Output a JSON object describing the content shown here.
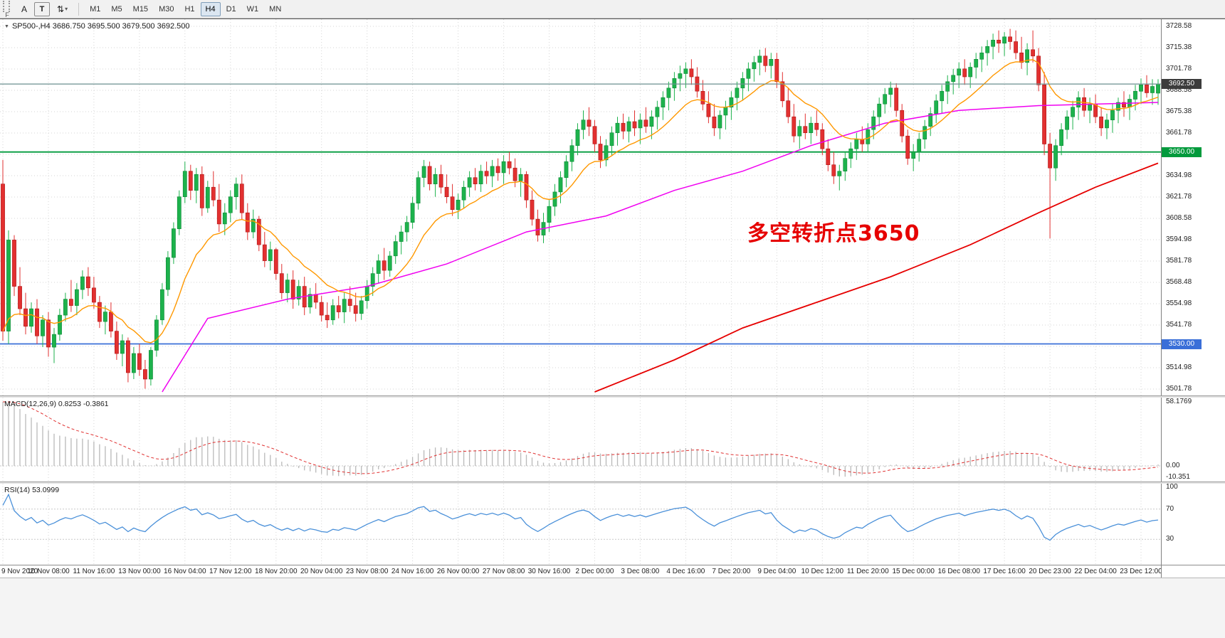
{
  "colors": {
    "up": "#1db24c",
    "up_border": "#0f8a38",
    "down": "#e23030",
    "down_border": "#b01717",
    "ma_fast": "#ff9800",
    "ma_mid": "#f000f0",
    "ma_slow": "#e60000",
    "grid": "#d6d6d6",
    "macd_histo": "#b9b9b9",
    "macd_signal": "#e03030",
    "rsi_line": "#4a90d9",
    "price_line": "#6b8f8f",
    "badge_current_bg": "#3c3c3c"
  },
  "toolbar": {
    "f_label": "F",
    "a_button": "A",
    "t_button": "T",
    "arrows_icon": "⇅",
    "dropdown_caret": "▾",
    "timeframes": [
      "M1",
      "M5",
      "M15",
      "M30",
      "H1",
      "H4",
      "D1",
      "W1",
      "MN"
    ],
    "active_timeframe": "H4"
  },
  "chart": {
    "symbol_line": "SP500-,H4 3686.750 3695.500 3679.500 3692.500",
    "annotation": {
      "text": "多空转折点3650",
      "color": "#e60000"
    },
    "price_axis_labels": [
      "3728.58",
      "3715.38",
      "3701.78",
      "3688.58",
      "3675.38",
      "3661.78",
      "3648.58",
      "3634.98",
      "3621.78",
      "3608.58",
      "3594.98",
      "3581.78",
      "3568.48",
      "3554.98",
      "3541.78",
      "3528.18",
      "3514.98",
      "3501.78"
    ],
    "price_line": {
      "value": 3692.5,
      "label": "3692.50"
    },
    "hlines": [
      {
        "value": 3650,
        "label": "3650.00",
        "color": "#019a3c"
      },
      {
        "value": 3530,
        "label": "3530.00",
        "color": "#3a6fd8"
      }
    ]
  },
  "chart_data": {
    "type": "candlestick",
    "symbol": "SP500-",
    "timeframe": "H4",
    "ylim": [
      3501.78,
      3728.58
    ],
    "ma_fast_period": 14,
    "ma_mid_anchors": [
      [
        28,
        3500
      ],
      [
        36,
        3546
      ],
      [
        50,
        3558
      ],
      [
        64,
        3566
      ],
      [
        78,
        3580
      ],
      [
        92,
        3600
      ],
      [
        106,
        3610
      ],
      [
        118,
        3626
      ],
      [
        130,
        3638
      ],
      [
        142,
        3654
      ],
      [
        155,
        3668
      ],
      [
        168,
        3676
      ],
      [
        182,
        3679
      ],
      [
        203,
        3681
      ]
    ],
    "ma_slow_anchors": [
      [
        104,
        3500
      ],
      [
        118,
        3520
      ],
      [
        130,
        3540
      ],
      [
        143,
        3556
      ],
      [
        156,
        3572
      ],
      [
        170,
        3592
      ],
      [
        182,
        3612
      ],
      [
        192,
        3628
      ],
      [
        203,
        3643
      ]
    ],
    "render_hints": {
      "macd_seed": 62.8,
      "rsi_seed_gain": 2.4,
      "rsi_seed_loss": 0.8
    },
    "ohlc": [
      [
        3630,
        3645,
        3532,
        3538
      ],
      [
        3538,
        3601,
        3530,
        3595
      ],
      [
        3595,
        3598,
        3560,
        3566
      ],
      [
        3566,
        3578,
        3548,
        3552
      ],
      [
        3552,
        3562,
        3536,
        3541
      ],
      [
        3541,
        3556,
        3537,
        3552
      ],
      [
        3552,
        3558,
        3530,
        3535
      ],
      [
        3535,
        3548,
        3528,
        3545
      ],
      [
        3545,
        3550,
        3522,
        3528
      ],
      [
        3528,
        3540,
        3518,
        3536
      ],
      [
        3536,
        3552,
        3532,
        3548
      ],
      [
        3548,
        3562,
        3544,
        3558
      ],
      [
        3558,
        3570,
        3550,
        3554
      ],
      [
        3554,
        3568,
        3548,
        3564
      ],
      [
        3564,
        3576,
        3558,
        3572
      ],
      [
        3572,
        3578,
        3560,
        3565
      ],
      [
        3565,
        3572,
        3552,
        3556
      ],
      [
        3556,
        3560,
        3540,
        3544
      ],
      [
        3544,
        3554,
        3536,
        3550
      ],
      [
        3550,
        3556,
        3534,
        3538
      ],
      [
        3538,
        3544,
        3520,
        3524
      ],
      [
        3524,
        3536,
        3516,
        3532
      ],
      [
        3532,
        3534,
        3506,
        3512
      ],
      [
        3512,
        3528,
        3508,
        3524
      ],
      [
        3524,
        3530,
        3510,
        3514
      ],
      [
        3514,
        3520,
        3502,
        3508
      ],
      [
        3508,
        3528,
        3504,
        3526
      ],
      [
        3526,
        3548,
        3522,
        3545
      ],
      [
        3545,
        3568,
        3542,
        3564
      ],
      [
        3564,
        3588,
        3560,
        3584
      ],
      [
        3584,
        3606,
        3580,
        3602
      ],
      [
        3602,
        3626,
        3598,
        3622
      ],
      [
        3622,
        3644,
        3618,
        3638
      ],
      [
        3638,
        3642,
        3620,
        3626
      ],
      [
        3626,
        3640,
        3618,
        3636
      ],
      [
        3636,
        3641,
        3610,
        3615
      ],
      [
        3615,
        3632,
        3612,
        3628
      ],
      [
        3628,
        3638,
        3616,
        3620
      ],
      [
        3620,
        3630,
        3600,
        3605
      ],
      [
        3605,
        3618,
        3598,
        3612
      ],
      [
        3612,
        3626,
        3606,
        3622
      ],
      [
        3622,
        3634,
        3614,
        3630
      ],
      [
        3630,
        3636,
        3608,
        3612
      ],
      [
        3612,
        3618,
        3595,
        3600
      ],
      [
        3600,
        3614,
        3596,
        3608
      ],
      [
        3608,
        3610,
        3588,
        3592
      ],
      [
        3592,
        3600,
        3578,
        3582
      ],
      [
        3582,
        3594,
        3576,
        3589
      ],
      [
        3589,
        3590,
        3570,
        3574
      ],
      [
        3574,
        3580,
        3558,
        3562
      ],
      [
        3562,
        3574,
        3556,
        3570
      ],
      [
        3570,
        3576,
        3552,
        3558
      ],
      [
        3558,
        3570,
        3554,
        3566
      ],
      [
        3566,
        3572,
        3548,
        3553
      ],
      [
        3553,
        3565,
        3549,
        3561
      ],
      [
        3561,
        3568,
        3552,
        3556
      ],
      [
        3556,
        3560,
        3544,
        3548
      ],
      [
        3548,
        3556,
        3540,
        3545
      ],
      [
        3545,
        3558,
        3542,
        3554
      ],
      [
        3554,
        3560,
        3546,
        3550
      ],
      [
        3550,
        3562,
        3543,
        3558
      ],
      [
        3558,
        3566,
        3550,
        3554
      ],
      [
        3554,
        3562,
        3544,
        3549
      ],
      [
        3549,
        3560,
        3545,
        3557
      ],
      [
        3557,
        3570,
        3552,
        3566
      ],
      [
        3566,
        3578,
        3560,
        3574
      ],
      [
        3574,
        3586,
        3568,
        3582
      ],
      [
        3582,
        3590,
        3570,
        3576
      ],
      [
        3576,
        3588,
        3572,
        3585
      ],
      [
        3585,
        3598,
        3580,
        3594
      ],
      [
        3594,
        3604,
        3586,
        3600
      ],
      [
        3600,
        3610,
        3594,
        3606
      ],
      [
        3606,
        3622,
        3602,
        3618
      ],
      [
        3618,
        3638,
        3614,
        3634
      ],
      [
        3634,
        3645,
        3628,
        3641
      ],
      [
        3641,
        3644,
        3626,
        3630
      ],
      [
        3630,
        3640,
        3622,
        3636
      ],
      [
        3636,
        3642,
        3624,
        3628
      ],
      [
        3628,
        3636,
        3618,
        3622
      ],
      [
        3622,
        3630,
        3610,
        3614
      ],
      [
        3614,
        3624,
        3608,
        3620
      ],
      [
        3620,
        3632,
        3615,
        3628
      ],
      [
        3628,
        3638,
        3622,
        3634
      ],
      [
        3634,
        3640,
        3626,
        3630
      ],
      [
        3630,
        3642,
        3625,
        3638
      ],
      [
        3638,
        3644,
        3630,
        3635
      ],
      [
        3635,
        3645,
        3628,
        3641
      ],
      [
        3641,
        3646,
        3632,
        3637
      ],
      [
        3637,
        3648,
        3630,
        3644
      ],
      [
        3644,
        3650,
        3636,
        3640
      ],
      [
        3640,
        3646,
        3628,
        3632
      ],
      [
        3632,
        3640,
        3622,
        3636
      ],
      [
        3636,
        3638,
        3615,
        3620
      ],
      [
        3620,
        3626,
        3604,
        3608
      ],
      [
        3608,
        3614,
        3594,
        3598
      ],
      [
        3598,
        3612,
        3593,
        3606
      ],
      [
        3606,
        3620,
        3600,
        3616
      ],
      [
        3616,
        3630,
        3610,
        3625
      ],
      [
        3625,
        3638,
        3618,
        3634
      ],
      [
        3634,
        3648,
        3628,
        3644
      ],
      [
        3644,
        3658,
        3638,
        3654
      ],
      [
        3654,
        3668,
        3648,
        3664
      ],
      [
        3664,
        3676,
        3658,
        3670
      ],
      [
        3670,
        3678,
        3660,
        3666
      ],
      [
        3666,
        3670,
        3650,
        3655
      ],
      [
        3655,
        3660,
        3640,
        3645
      ],
      [
        3645,
        3658,
        3641,
        3654
      ],
      [
        3654,
        3666,
        3648,
        3662
      ],
      [
        3662,
        3672,
        3654,
        3668
      ],
      [
        3668,
        3674,
        3658,
        3663
      ],
      [
        3663,
        3672,
        3656,
        3669
      ],
      [
        3669,
        3676,
        3660,
        3665
      ],
      [
        3665,
        3674,
        3655,
        3670
      ],
      [
        3670,
        3678,
        3662,
        3666
      ],
      [
        3666,
        3676,
        3658,
        3672
      ],
      [
        3672,
        3682,
        3664,
        3678
      ],
      [
        3678,
        3688,
        3670,
        3684
      ],
      [
        3684,
        3694,
        3676,
        3690
      ],
      [
        3690,
        3700,
        3682,
        3696
      ],
      [
        3696,
        3704,
        3688,
        3699
      ],
      [
        3699,
        3706,
        3690,
        3702
      ],
      [
        3702,
        3708,
        3692,
        3697
      ],
      [
        3697,
        3703,
        3684,
        3688
      ],
      [
        3688,
        3695,
        3676,
        3680
      ],
      [
        3680,
        3688,
        3668,
        3672
      ],
      [
        3672,
        3680,
        3660,
        3665
      ],
      [
        3665,
        3676,
        3658,
        3673
      ],
      [
        3673,
        3682,
        3664,
        3678
      ],
      [
        3678,
        3688,
        3670,
        3684
      ],
      [
        3684,
        3694,
        3676,
        3690
      ],
      [
        3690,
        3700,
        3682,
        3696
      ],
      [
        3696,
        3706,
        3688,
        3702
      ],
      [
        3702,
        3710,
        3694,
        3706
      ],
      [
        3706,
        3714,
        3698,
        3710
      ],
      [
        3710,
        3715,
        3700,
        3704
      ],
      [
        3704,
        3712,
        3696,
        3708
      ],
      [
        3708,
        3712,
        3690,
        3694
      ],
      [
        3694,
        3700,
        3678,
        3682
      ],
      [
        3682,
        3690,
        3668,
        3672
      ],
      [
        3672,
        3680,
        3656,
        3660
      ],
      [
        3660,
        3670,
        3652,
        3666
      ],
      [
        3666,
        3674,
        3658,
        3662
      ],
      [
        3662,
        3672,
        3655,
        3668
      ],
      [
        3668,
        3676,
        3660,
        3664
      ],
      [
        3664,
        3668,
        3648,
        3652
      ],
      [
        3652,
        3658,
        3638,
        3642
      ],
      [
        3642,
        3650,
        3630,
        3635
      ],
      [
        3635,
        3642,
        3626,
        3638
      ],
      [
        3638,
        3650,
        3632,
        3646
      ],
      [
        3646,
        3656,
        3640,
        3652
      ],
      [
        3652,
        3662,
        3645,
        3658
      ],
      [
        3658,
        3666,
        3650,
        3655
      ],
      [
        3655,
        3668,
        3650,
        3664
      ],
      [
        3664,
        3676,
        3658,
        3672
      ],
      [
        3672,
        3684,
        3666,
        3680
      ],
      [
        3680,
        3690,
        3674,
        3686
      ],
      [
        3686,
        3694,
        3678,
        3690
      ],
      [
        3690,
        3693,
        3672,
        3676
      ],
      [
        3676,
        3680,
        3656,
        3660
      ],
      [
        3660,
        3664,
        3642,
        3646
      ],
      [
        3646,
        3655,
        3638,
        3650
      ],
      [
        3650,
        3662,
        3644,
        3658
      ],
      [
        3658,
        3670,
        3652,
        3666
      ],
      [
        3666,
        3678,
        3660,
        3674
      ],
      [
        3674,
        3686,
        3668,
        3682
      ],
      [
        3682,
        3692,
        3674,
        3688
      ],
      [
        3688,
        3698,
        3680,
        3694
      ],
      [
        3694,
        3702,
        3686,
        3698
      ],
      [
        3698,
        3706,
        3690,
        3702
      ],
      [
        3702,
        3708,
        3692,
        3697
      ],
      [
        3697,
        3706,
        3690,
        3703
      ],
      [
        3703,
        3712,
        3696,
        3708
      ],
      [
        3708,
        3716,
        3700,
        3712
      ],
      [
        3712,
        3720,
        3704,
        3716
      ],
      [
        3716,
        3724,
        3708,
        3720
      ],
      [
        3720,
        3726,
        3712,
        3718
      ],
      [
        3718,
        3725,
        3710,
        3722
      ],
      [
        3722,
        3727,
        3714,
        3719
      ],
      [
        3719,
        3726,
        3708,
        3712
      ],
      [
        3712,
        3722,
        3702,
        3706
      ],
      [
        3706,
        3718,
        3698,
        3714
      ],
      [
        3714,
        3726,
        3706,
        3710
      ],
      [
        3710,
        3715,
        3688,
        3692
      ],
      [
        3692,
        3700,
        3648,
        3655
      ],
      [
        3655,
        3662,
        3596,
        3640
      ],
      [
        3640,
        3658,
        3632,
        3654
      ],
      [
        3654,
        3668,
        3648,
        3664
      ],
      [
        3664,
        3676,
        3658,
        3672
      ],
      [
        3672,
        3682,
        3664,
        3678
      ],
      [
        3678,
        3688,
        3670,
        3684
      ],
      [
        3684,
        3690,
        3672,
        3676
      ],
      [
        3676,
        3684,
        3668,
        3680
      ],
      [
        3680,
        3686,
        3668,
        3672
      ],
      [
        3672,
        3678,
        3660,
        3665
      ],
      [
        3665,
        3674,
        3658,
        3670
      ],
      [
        3670,
        3680,
        3662,
        3676
      ],
      [
        3676,
        3684,
        3668,
        3681
      ],
      [
        3681,
        3688,
        3672,
        3678
      ],
      [
        3678,
        3686,
        3670,
        3683
      ],
      [
        3683,
        3692,
        3676,
        3688
      ],
      [
        3688,
        3696,
        3680,
        3692
      ],
      [
        3692,
        3698,
        3684,
        3687
      ],
      [
        3687,
        3695.5,
        3679.5,
        3691
      ],
      [
        3686.75,
        3695.5,
        3679.5,
        3692.5
      ]
    ]
  },
  "macd": {
    "label": "MACD(12,26,9) 0.8253 -0.3861",
    "params": {
      "fast": 12,
      "slow": 26,
      "signal": 9
    },
    "axis": [
      "58.1769",
      "0.00",
      "-10.351"
    ],
    "axis_values": [
      58.1769,
      0,
      -10.351
    ],
    "ylim": [
      -10.351,
      58.1769
    ]
  },
  "rsi": {
    "label": "RSI(14) 53.0999",
    "period": 14,
    "axis": [
      "100",
      "70",
      "30"
    ],
    "axis_values": [
      100,
      70,
      30
    ],
    "levels": [
      70,
      30
    ]
  },
  "time_axis": {
    "labels": [
      "9 Nov 2020",
      "10 Nov 08:00",
      "11 Nov 16:00",
      "13 Nov 00:00",
      "16 Nov 04:00",
      "17 Nov 12:00",
      "18 Nov 20:00",
      "20 Nov 04:00",
      "23 Nov 08:00",
      "24 Nov 16:00",
      "26 Nov 00:00",
      "27 Nov 08:00",
      "30 Nov 16:00",
      "2 Dec 00:00",
      "3 Dec 08:00",
      "4 Dec 16:00",
      "7 Dec 20:00",
      "9 Dec 04:00",
      "10 Dec 12:00",
      "11 Dec 20:00",
      "15 Dec 00:00",
      "16 Dec 08:00",
      "17 Dec 16:00",
      "20 Dec 23:00",
      "22 Dec 04:00",
      "23 Dec 12:00"
    ]
  }
}
